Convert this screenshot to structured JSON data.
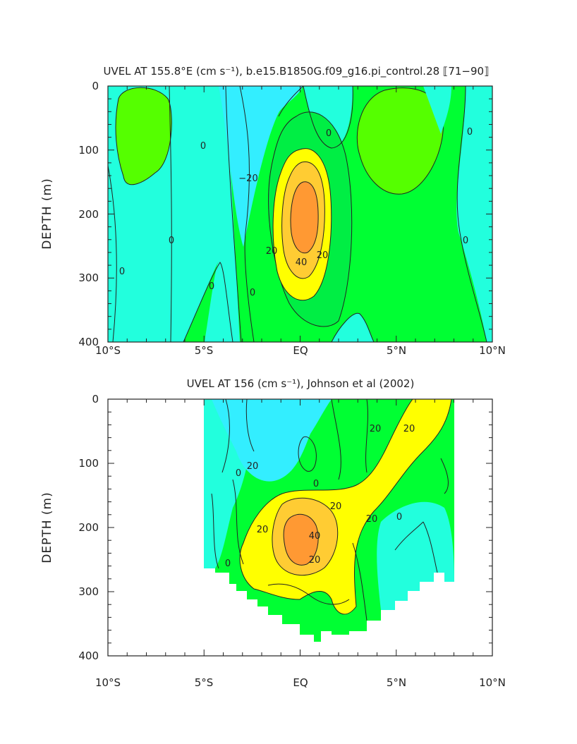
{
  "colors": {
    "c_neg30": "#00ccff",
    "c_neg20": "#33eeff",
    "c_neg10": "#22ffdd",
    "c_0": "#00ff33",
    "c_10": "#55ff00",
    "c_20": "#00ee44",
    "c_30": "#ffff00",
    "c_40": "#ffcc33",
    "c_50": "#ff9933",
    "contour": "#222222"
  },
  "chart_data": [
    {
      "type": "contour",
      "title": "UVEL AT 155.8°E (cm s⁻¹), b.e15.B1850G.f09_g16.pi_control.28 ⟦71−90⟧",
      "ylabel": "DEPTH (m)",
      "xlabel": "",
      "x_ticks": [
        "10°S",
        "5°S",
        "EQ",
        "5°N",
        "10°N"
      ],
      "x_tick_values": [
        -10,
        -5,
        0,
        5,
        10
      ],
      "y_ticks": [
        "0",
        "100",
        "200",
        "300",
        "400"
      ],
      "y_tick_values": [
        0,
        100,
        200,
        300,
        400
      ],
      "xlim": [
        -10,
        10
      ],
      "ylim": [
        400,
        0
      ],
      "contour_interval": 10,
      "contour_labels": [
        {
          "text": "0",
          "x": -9.0,
          "y": 290
        },
        {
          "text": "0",
          "x": -3.4,
          "y": 240
        },
        {
          "text": "0",
          "x": -5.0,
          "y": 93
        },
        {
          "text": "0",
          "x": -4.5,
          "y": 313
        },
        {
          "text": "0",
          "x": -2.5,
          "y": 322
        },
        {
          "text": "−20",
          "x": -2.8,
          "y": 140
        },
        {
          "text": "20",
          "x": -1.5,
          "y": 260
        },
        {
          "text": "20",
          "x": 1.2,
          "y": 265
        },
        {
          "text": "40",
          "x": 0.0,
          "y": 270
        },
        {
          "text": "0",
          "x": 1.5,
          "y": 72
        },
        {
          "text": "0",
          "x": 8.8,
          "y": 70
        },
        {
          "text": "0",
          "x": 8.5,
          "y": 240
        }
      ]
    },
    {
      "type": "contour",
      "title": "UVEL AT 156 (cm s⁻¹), Johnson et al (2002)",
      "ylabel": "DEPTH (m)",
      "xlabel": "",
      "x_ticks": [
        "10°S",
        "5°S",
        "EQ",
        "5°N",
        "10°N"
      ],
      "x_tick_values": [
        -10,
        -5,
        0,
        5,
        10
      ],
      "y_ticks": [
        "0",
        "100",
        "200",
        "300",
        "400"
      ],
      "y_tick_values": [
        0,
        100,
        200,
        300,
        400
      ],
      "xlim": [
        -10,
        10
      ],
      "ylim": [
        400,
        0
      ],
      "data_extent_x": [
        -5,
        8
      ],
      "contour_interval": 10,
      "contour_labels": [
        {
          "text": "20",
          "x": 3.8,
          "y": 42
        },
        {
          "text": "20",
          "x": 5.8,
          "y": 42
        },
        {
          "text": "20",
          "x": -2.5,
          "y": 105
        },
        {
          "text": "0",
          "x": -3.0,
          "y": 118
        },
        {
          "text": "0",
          "x": -4.7,
          "y": 260
        },
        {
          "text": "0",
          "x": 0.8,
          "y": 130
        },
        {
          "text": "20",
          "x": 1.8,
          "y": 165
        },
        {
          "text": "20",
          "x": -2.0,
          "y": 200
        },
        {
          "text": "40",
          "x": 0.6,
          "y": 220
        },
        {
          "text": "20",
          "x": 0.8,
          "y": 275
        },
        {
          "text": "20",
          "x": 3.8,
          "y": 200
        },
        {
          "text": "0",
          "x": 5.0,
          "y": 185
        }
      ]
    }
  ]
}
